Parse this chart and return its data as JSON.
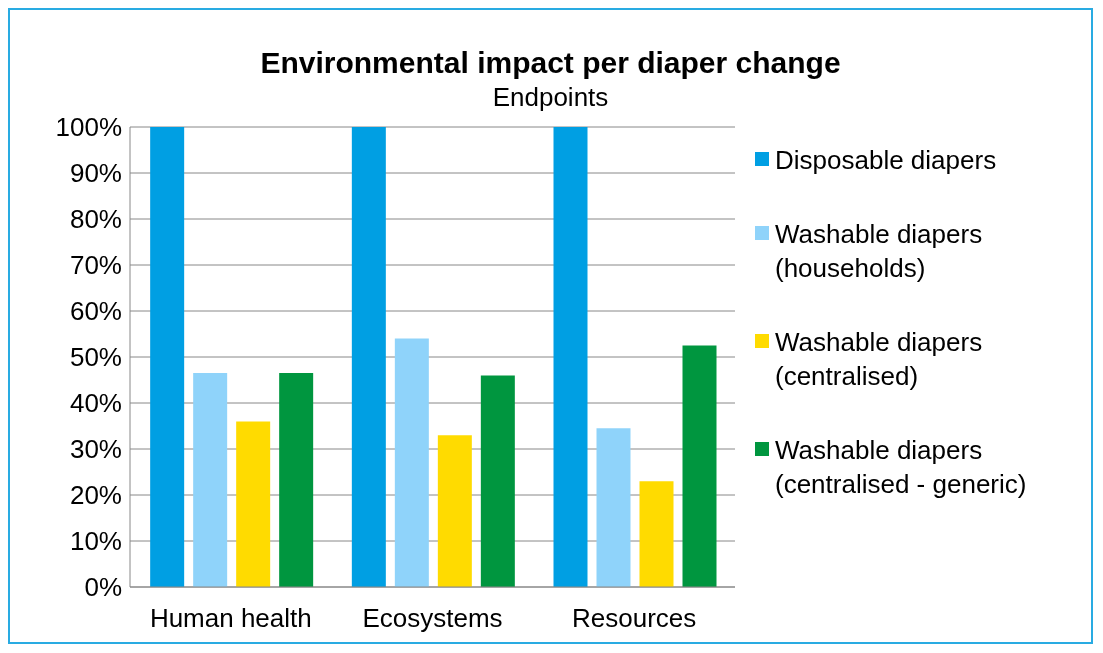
{
  "chart_data": {
    "type": "bar",
    "title": "Environmental impact per diaper change",
    "subtitle": "Endpoints",
    "categories": [
      "Human health",
      "Ecosystems",
      "Resources"
    ],
    "series": [
      {
        "name": "Disposable diapers",
        "color": "#009fe3",
        "values": [
          100,
          100,
          100
        ]
      },
      {
        "name": "Washable diapers (households)",
        "color": "#8fd3fa",
        "values": [
          46.5,
          54,
          34.5
        ]
      },
      {
        "name": "Washable diapers (centralised)",
        "color": "#ffdb00",
        "values": [
          36,
          33,
          23
        ]
      },
      {
        "name": "Washable diapers (centralised - generic)",
        "color": "#00963f",
        "values": [
          46.5,
          46,
          52.5
        ]
      }
    ],
    "ylim": [
      0,
      100
    ],
    "yticks": [
      {
        "value": 0,
        "label": "0%"
      },
      {
        "value": 10,
        "label": "10%"
      },
      {
        "value": 20,
        "label": "20%"
      },
      {
        "value": 30,
        "label": "30%"
      },
      {
        "value": 40,
        "label": "40%"
      },
      {
        "value": 50,
        "label": "50%"
      },
      {
        "value": 60,
        "label": "60%"
      },
      {
        "value": 70,
        "label": "70%"
      },
      {
        "value": 80,
        "label": "80%"
      },
      {
        "value": 90,
        "label": "90%"
      },
      {
        "value": 100,
        "label": "100%"
      }
    ],
    "grid": "y",
    "legend": "right"
  }
}
